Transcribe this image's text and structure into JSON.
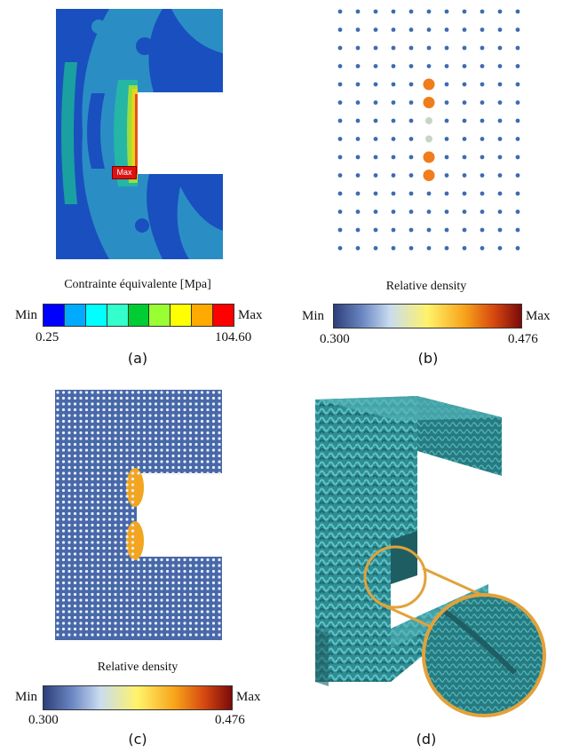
{
  "panels": [
    {
      "id": "a",
      "caption": "(a)",
      "colorbar_title": "Contrainte équivalente [Mpa]",
      "min_label": "Min",
      "max_label": "Max",
      "min_value": "0.25",
      "max_value": "104.60",
      "marker_label": "Max",
      "colors": [
        "#0000ff",
        "#00aaff",
        "#00ffff",
        "#33ffcc",
        "#00cc33",
        "#99ff33",
        "#ffff00",
        "#ffaa00",
        "#ff0000"
      ]
    },
    {
      "id": "b",
      "caption": "(b)",
      "colorbar_title": "Relative density",
      "min_label": "Min",
      "max_label": "Max",
      "min_value": "0.300",
      "max_value": "0.476"
    },
    {
      "id": "c",
      "caption": "(c)",
      "colorbar_title": "Relative density",
      "min_label": "Min",
      "max_label": "Max",
      "min_value": "0.300",
      "max_value": "0.476"
    },
    {
      "id": "d",
      "caption": "(d)"
    }
  ],
  "colors": {
    "fea_background": "#1a4fbf",
    "fea_mid": "#2f8fbf",
    "lattice_dot": "#3e6bb0",
    "highlight_dot": "#f07c1b",
    "lattice_part": "#3a9aa0",
    "zoom_ring": "#e2a23a"
  }
}
